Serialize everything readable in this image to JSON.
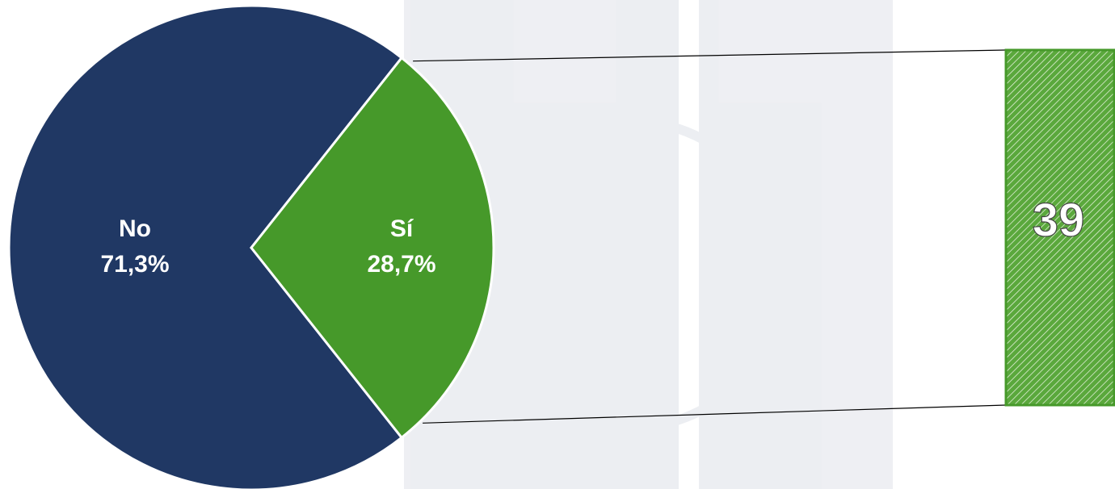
{
  "chart_data": {
    "type": "pie",
    "categories": [
      "No",
      "Sí"
    ],
    "values": [
      71.3,
      28.7
    ],
    "value_labels": [
      "71,3%",
      "28,7%"
    ],
    "colors": [
      "#203864",
      "#46992a"
    ],
    "breakout": {
      "values": [
        39
      ],
      "color": "#46992a"
    }
  }
}
